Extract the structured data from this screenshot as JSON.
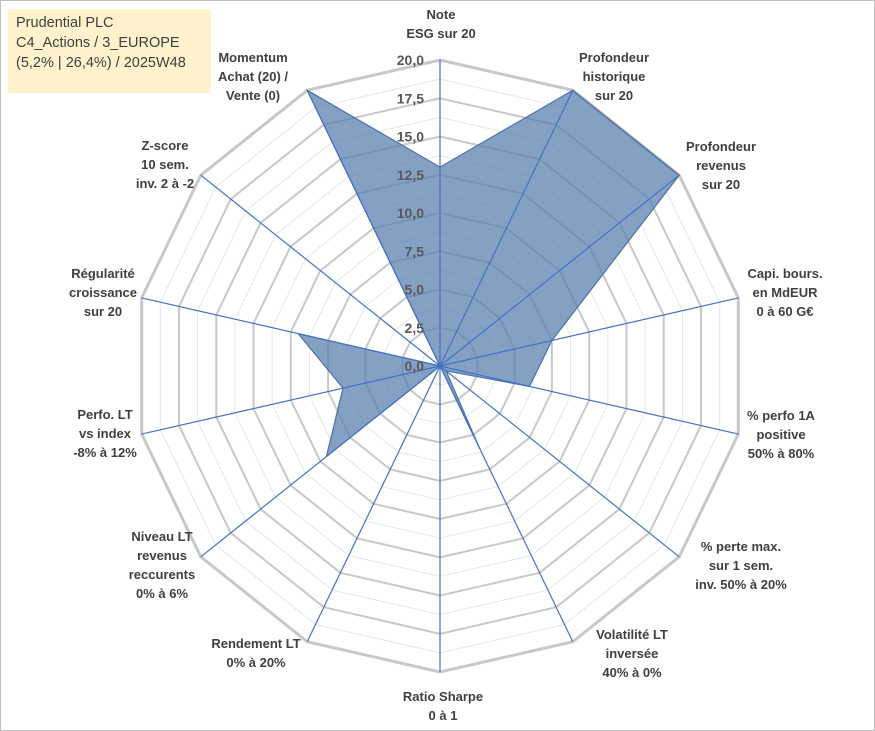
{
  "info_box": {
    "line1": "Prudential PLC",
    "line2": "C4_Actions / 3_EUROPE",
    "line3": "(5,2% | 26,4%) / 2025W48"
  },
  "chart_data": {
    "type": "radar",
    "title": "",
    "rlim": [
      0,
      20
    ],
    "rticks": [
      "0,0",
      "2,5",
      "5,0",
      "7,5",
      "10,0",
      "12,5",
      "15,0",
      "17,5",
      "20,0"
    ],
    "grid": true,
    "categories": [
      [
        "Note",
        "ESG sur 20"
      ],
      [
        "Profondeur",
        "historique",
        "sur 20"
      ],
      [
        "Profondeur",
        "revenus",
        "sur 20"
      ],
      [
        "Capi. bours.",
        "en MdEUR",
        "0 à 60 G€"
      ],
      [
        "% perfo 1A",
        "positive",
        "50% à 80%"
      ],
      [
        "% perte max.",
        "sur 1 sem.",
        "inv. 50% à 20%"
      ],
      [
        "Volatilité LT",
        "inversée",
        "40% à 0%"
      ],
      [
        "Ratio Sharpe",
        "0 à 1"
      ],
      [
        "Rendement LT",
        "0% à 20%"
      ],
      [
        "Niveau LT",
        "revenus",
        "reccurents",
        "0% à 6%"
      ],
      [
        "Perfo. LT",
        "vs index",
        "-8% à 12%"
      ],
      [
        "Régularité",
        "croissance",
        "sur 20"
      ],
      [
        "Z-score",
        "10 sem.",
        "inv. 2 à -2"
      ],
      [
        "Momentum",
        "Achat (20) /",
        "Vente (0)"
      ]
    ],
    "series": [
      {
        "values": [
          13,
          20,
          20,
          7.5,
          6,
          0.5,
          6,
          0,
          0,
          9.5,
          6.5,
          9.5,
          0,
          20
        ],
        "color": "#4a73a8",
        "fill_opacity": 0.75
      }
    ],
    "colors": {
      "grid": "#c8c8c8",
      "axes": "#4472c4",
      "fill": "#5b82b0",
      "stroke": "#4a73a8"
    }
  }
}
